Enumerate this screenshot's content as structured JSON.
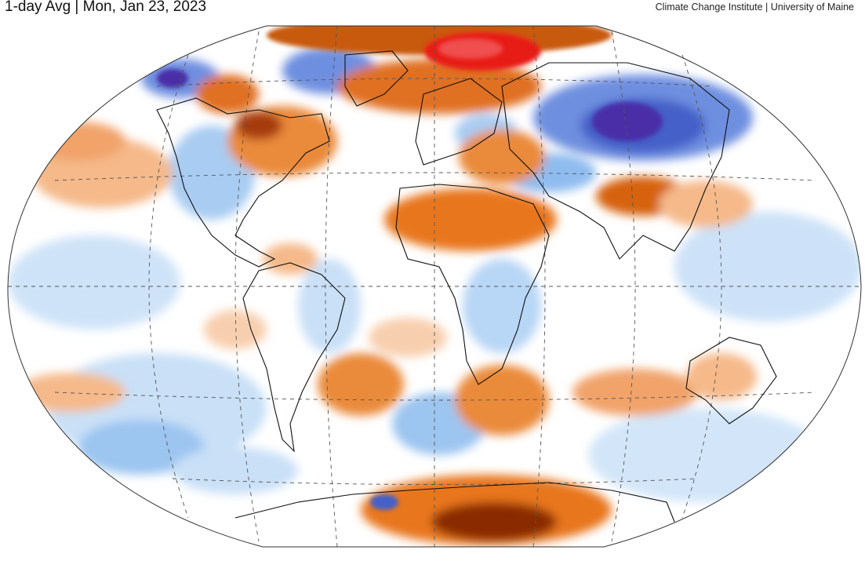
{
  "header": {
    "title": "1-day Avg | Mon, Jan 23, 2023",
    "credit": "Climate Change Institute | University of Maine"
  },
  "map": {
    "projection": "winkel-tripel-like world map",
    "variable": "temperature anomaly",
    "colors": {
      "strong_warm": "#ee1111",
      "dark_warm": "#8a2a05",
      "warm": "#e8761e",
      "mild_warm": "#f5b98a",
      "neutral": "#ffffff",
      "mild_cool": "#c9e0f7",
      "cool": "#8fbcef",
      "cold": "#4460c8",
      "very_cold": "#4a2fa8",
      "coast": "#111111",
      "grid": "#555555"
    }
  }
}
